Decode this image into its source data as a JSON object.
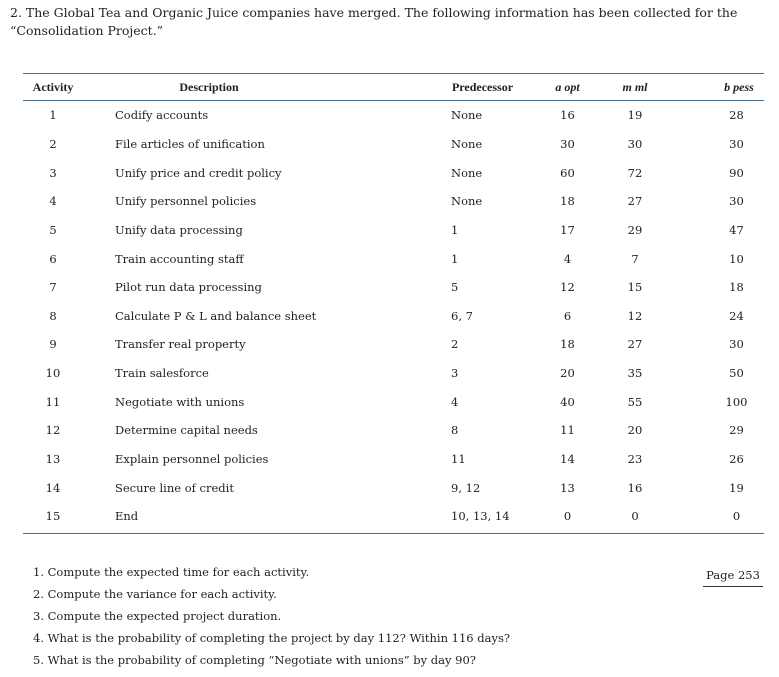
{
  "problem": {
    "intro": "2. The Global Tea and Organic Juice companies have merged. The following information has been collected for the “Consolidation Project.”"
  },
  "table": {
    "headers": {
      "activity": "Activity",
      "description": "Description",
      "predecessor": "Predecessor",
      "a_opt": "a opt",
      "m_ml": "m ml",
      "b_pess": "b pess"
    },
    "rows": [
      {
        "activity": "1",
        "description": "Codify accounts",
        "predecessor": "None",
        "a": "16",
        "m": "19",
        "b": "28"
      },
      {
        "activity": "2",
        "description": "File articles of unification",
        "predecessor": "None",
        "a": "30",
        "m": "30",
        "b": "30"
      },
      {
        "activity": "3",
        "description": "Unify price and credit policy",
        "predecessor": "None",
        "a": "60",
        "m": "72",
        "b": "90"
      },
      {
        "activity": "4",
        "description": "Unify personnel policies",
        "predecessor": "None",
        "a": "18",
        "m": "27",
        "b": "30"
      },
      {
        "activity": "5",
        "description": "Unify data processing",
        "predecessor": "1",
        "a": "17",
        "m": "29",
        "b": "47"
      },
      {
        "activity": "6",
        "description": "Train accounting staff",
        "predecessor": "1",
        "a": "4",
        "m": "7",
        "b": "10"
      },
      {
        "activity": "7",
        "description": "Pilot run data processing",
        "predecessor": "5",
        "a": "12",
        "m": "15",
        "b": "18"
      },
      {
        "activity": "8",
        "description": "Calculate P & L and balance sheet",
        "predecessor": "6, 7",
        "a": "6",
        "m": "12",
        "b": "24"
      },
      {
        "activity": "9",
        "description": "Transfer real property",
        "predecessor": "2",
        "a": "18",
        "m": "27",
        "b": "30"
      },
      {
        "activity": "10",
        "description": "Train salesforce",
        "predecessor": "3",
        "a": "20",
        "m": "35",
        "b": "50"
      },
      {
        "activity": "11",
        "description": "Negotiate with unions",
        "predecessor": "4",
        "a": "40",
        "m": "55",
        "b": "100"
      },
      {
        "activity": "12",
        "description": "Determine capital needs",
        "predecessor": "8",
        "a": "11",
        "m": "20",
        "b": "29"
      },
      {
        "activity": "13",
        "description": "Explain personnel policies",
        "predecessor": "11",
        "a": "14",
        "m": "23",
        "b": "26"
      },
      {
        "activity": "14",
        "description": "Secure line of credit",
        "predecessor": "9, 12",
        "a": "13",
        "m": "16",
        "b": "19"
      },
      {
        "activity": "15",
        "description": "End",
        "predecessor": "10, 13, 14",
        "a": "0",
        "m": "0",
        "b": "0"
      }
    ]
  },
  "questions": [
    "1. Compute the expected time for each activity.",
    "2. Compute the variance for each activity.",
    "3. Compute the expected project duration.",
    "4. What is the probability of completing the project by day 112? Within 116 days?",
    "5. What is the probability of completing “Negotiate with unions” by day 90?"
  ],
  "page_label": "Page 253"
}
